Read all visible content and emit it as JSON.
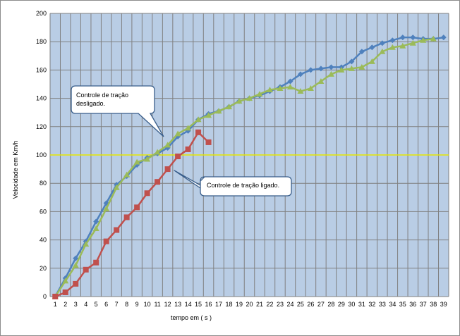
{
  "chart_data": {
    "type": "line",
    "xlabel": "tempo em ( s )",
    "ylabel": "Velocidade em Km/h",
    "x": [
      1,
      2,
      3,
      4,
      5,
      6,
      7,
      8,
      9,
      10,
      11,
      12,
      13,
      14,
      15,
      16,
      17,
      18,
      19,
      20,
      21,
      22,
      23,
      24,
      25,
      26,
      27,
      28,
      29,
      30,
      31,
      32,
      33,
      34,
      35,
      36,
      37,
      38,
      39
    ],
    "xlim": [
      1,
      39
    ],
    "ylim": [
      0,
      200
    ],
    "ytick_step": 20,
    "grid": true,
    "legend": "none",
    "reference_line": {
      "y": 100,
      "color": "#e6e600"
    },
    "series": [
      {
        "color": "#4f81bd",
        "marker": "diamond",
        "values": [
          0,
          13,
          27,
          39,
          53,
          66,
          79,
          85,
          93,
          98,
          101,
          105,
          113,
          117,
          125,
          129,
          131,
          134,
          138,
          140,
          142,
          145,
          148,
          152,
          157,
          160,
          161,
          162,
          162,
          166,
          173,
          176,
          179,
          181,
          183,
          183,
          182,
          182,
          183
        ]
      },
      {
        "color": "#9bbb59",
        "marker": "triangle",
        "values": [
          0,
          11,
          22,
          37,
          48,
          62,
          77,
          86,
          95,
          97,
          102,
          107,
          115,
          119,
          125,
          128,
          131,
          134,
          138,
          140,
          143,
          146,
          147,
          148,
          145,
          147,
          152,
          157,
          160,
          161,
          162,
          166,
          173,
          176,
          177,
          179,
          181,
          182,
          null
        ]
      },
      {
        "color": "#c0504d",
        "marker": "square",
        "values": [
          0,
          3,
          9,
          19,
          24,
          39,
          47,
          56,
          63,
          73,
          81,
          90,
          99,
          104,
          116,
          109,
          null,
          null,
          null,
          null,
          null,
          null,
          null,
          null,
          null,
          null,
          null,
          null,
          null,
          null,
          null,
          null,
          null,
          null,
          null,
          null,
          null,
          null,
          null
        ]
      }
    ],
    "annotations": [
      {
        "lines": [
          "Controle de tração",
          "desligado."
        ],
        "point": [
          12,
          111
        ]
      },
      {
        "lines": [
          "Controle de tração ligado."
        ],
        "point": [
          12,
          88
        ]
      }
    ]
  },
  "callouts": {
    "off": {
      "line1": "Controle de tração",
      "line2": "desligado."
    },
    "on": {
      "line1": "Controle de tração ligado."
    }
  },
  "colors": {
    "plot_bg": "#b9cde5",
    "grid": "#808080",
    "reference": "#e6e600"
  }
}
